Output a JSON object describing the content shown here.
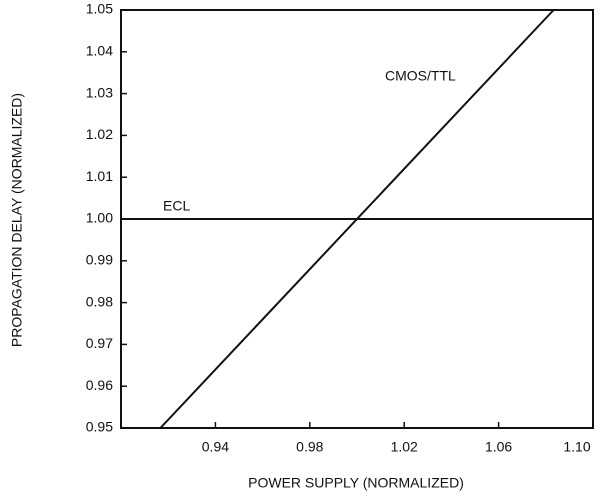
{
  "chart_data": {
    "type": "line",
    "xlabel": "POWER SUPPLY (NORMALIZED)",
    "ylabel": "PROPAGATION DELAY (NORMALIZED)",
    "xlim": [
      0.9,
      1.1
    ],
    "xticks": [
      0.94,
      0.98,
      1.02,
      1.06,
      {
        "value": 1.1,
        "label": "1.10"
      }
    ],
    "ylim": [
      0.95,
      1.05
    ],
    "yticks": [
      0.95,
      0.96,
      0.97,
      0.98,
      0.99,
      {
        "value": 1.0,
        "label": "1.00"
      },
      1.01,
      1.02,
      1.03,
      1.04,
      1.05
    ],
    "grid": false,
    "series": [
      {
        "name": "CMOS/TTL",
        "color": "#111111",
        "x": [
          0.9167,
          1.0833
        ],
        "values": [
          0.95,
          1.05
        ]
      },
      {
        "name": "ECL",
        "color": "#111111",
        "x": [
          0.9,
          1.1
        ],
        "values": [
          1.0,
          1.0
        ]
      }
    ]
  }
}
